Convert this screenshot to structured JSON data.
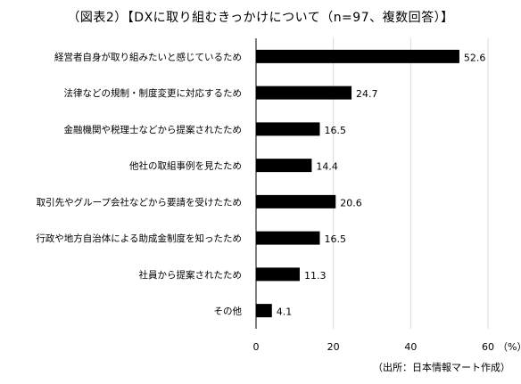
{
  "title": "（図表2）【DXに取り組むきっかけについて（n=97、複数回答）】",
  "source": "（出所：日本情報マート作成）",
  "chart_data": {
    "type": "bar",
    "orientation": "horizontal",
    "categories": [
      "経営者自身が取り組みたいと感じているため",
      "法律などの規制・制度変更に対応するため",
      "金融機関や税理士などから提案されたため",
      "他社の取組事例を見たため",
      "取引先やグループ会社などから要請を受けたため",
      "行政や地方自治体による助成金制度を知ったため",
      "社員から提案されたため",
      "その他"
    ],
    "values": [
      52.6,
      24.7,
      16.5,
      14.4,
      20.6,
      16.5,
      11.3,
      4.1
    ],
    "value_labels": [
      "52.6",
      "24.7",
      "16.5",
      "14.4",
      "20.6",
      "16.5",
      "11.3",
      "4.1"
    ],
    "xlim": [
      0,
      60
    ],
    "ticks": [
      0,
      20,
      40,
      60
    ],
    "tick_labels": [
      "0",
      "20",
      "40",
      "60"
    ],
    "unit_label": "（%）",
    "grid": "vertical",
    "bar_color": "#000000",
    "grid_color": "#d9d9d9"
  }
}
